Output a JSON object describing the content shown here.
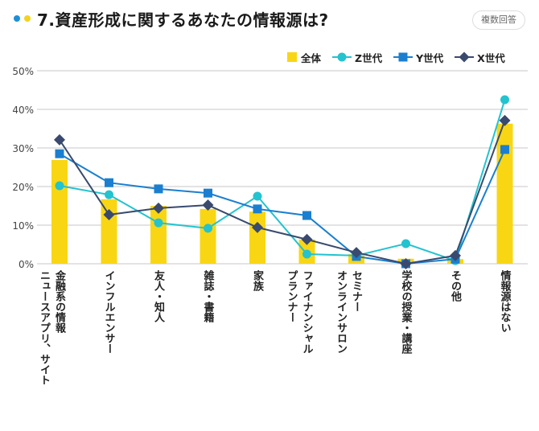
{
  "header": {
    "title": "7.資産形成に関するあなたの情報源は?",
    "badge": "複数回答"
  },
  "colors": {
    "all": "#F9D613",
    "z": "#23C3CF",
    "y": "#1A7FD0",
    "x": "#394A6E",
    "grid": "#e3e3e3",
    "dot_blue": "#1E8FD6",
    "dot_yellow": "#F4D21E"
  },
  "chart_data": {
    "type": "bar",
    "title": "7.資産形成に関するあなたの情報源は?",
    "xlabel": "",
    "ylabel": "",
    "ylim": [
      0,
      50
    ],
    "yticks": [
      "0%",
      "10%",
      "20%",
      "30%",
      "40%",
      "50%"
    ],
    "ytick_values": [
      0,
      10,
      20,
      30,
      40,
      50
    ],
    "grid": true,
    "legend_position": "top-right",
    "categories": [
      "金融系の情報\nニュースアプリ、サイト",
      "インフルエンサー",
      "友人・知人",
      "雑誌・書籍",
      "家族",
      "ファイナンシャル\nプランナー",
      "セミナー\nオンラインサロン",
      "学校の授業・講座",
      "その他",
      "情報源はない"
    ],
    "series": [
      {
        "name": "全体",
        "type": "bar",
        "marker": "square",
        "values": [
          26.9,
          16.7,
          15.0,
          14.2,
          13.5,
          6.3,
          2.5,
          1.3,
          1.2,
          36.3
        ]
      },
      {
        "name": "Z世代",
        "type": "line",
        "marker": "circle",
        "values": [
          20.2,
          17.9,
          10.6,
          9.2,
          17.5,
          2.5,
          2.1,
          5.2,
          0.8,
          42.5
        ]
      },
      {
        "name": "Y世代",
        "type": "line",
        "marker": "square",
        "values": [
          28.5,
          21.0,
          19.4,
          18.3,
          14.2,
          12.5,
          1.9,
          0.0,
          1.2,
          29.6
        ]
      },
      {
        "name": "X世代",
        "type": "line",
        "marker": "diamond",
        "values": [
          32.1,
          12.7,
          14.4,
          15.2,
          9.4,
          6.3,
          2.9,
          0.0,
          2.1,
          37.1
        ]
      }
    ]
  }
}
